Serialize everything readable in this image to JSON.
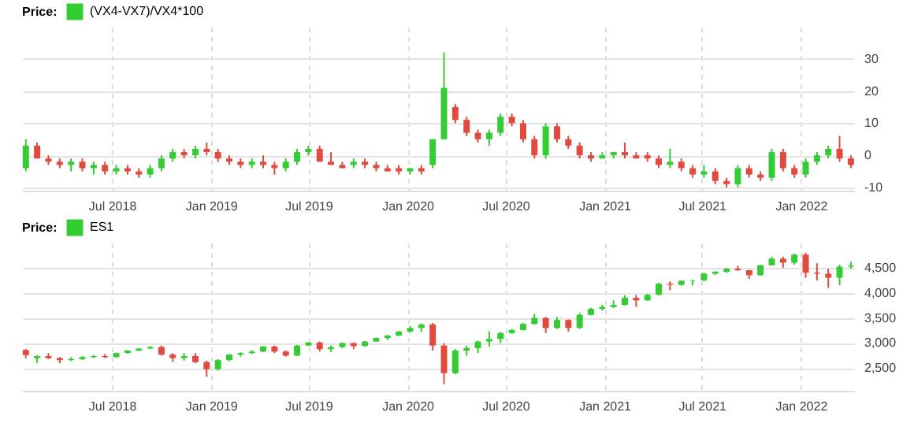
{
  "chart_data": [
    {
      "type": "candlestick",
      "legend_title": "Price:",
      "legend": "top left",
      "grid": true,
      "x": [
        "2018-01-22",
        "2018-02-12",
        "2018-03-05",
        "2018-03-26",
        "2018-04-16",
        "2018-05-07",
        "2018-05-28",
        "2018-06-18",
        "2018-07-09",
        "2018-07-30",
        "2018-08-20",
        "2018-09-10",
        "2018-10-01",
        "2018-10-22",
        "2018-11-12",
        "2018-12-03",
        "2018-12-24",
        "2019-01-14",
        "2019-02-04",
        "2019-02-25",
        "2019-03-18",
        "2019-04-08",
        "2019-04-29",
        "2019-05-20",
        "2019-06-10",
        "2019-07-01",
        "2019-07-22",
        "2019-08-12",
        "2019-09-02",
        "2019-09-23",
        "2019-10-14",
        "2019-11-04",
        "2019-11-25",
        "2019-12-16",
        "2020-01-06",
        "2020-01-27",
        "2020-02-17",
        "2020-03-09",
        "2020-03-30",
        "2020-04-20",
        "2020-05-11",
        "2020-06-01",
        "2020-06-22",
        "2020-07-13",
        "2020-08-03",
        "2020-08-24",
        "2020-09-14",
        "2020-10-05",
        "2020-10-26",
        "2020-11-16",
        "2020-12-07",
        "2020-12-28",
        "2021-01-18",
        "2021-02-08",
        "2021-03-01",
        "2021-03-22",
        "2021-04-12",
        "2021-05-03",
        "2021-05-24",
        "2021-06-14",
        "2021-07-05",
        "2021-07-26",
        "2021-08-16",
        "2021-09-06",
        "2021-09-27",
        "2021-10-18",
        "2021-11-08",
        "2021-11-29",
        "2021-12-20",
        "2022-01-10",
        "2022-01-31",
        "2022-02-21",
        "2022-03-14",
        "2022-04-04"
      ],
      "series": [
        {
          "name": "(VX4-VX7)/VX4*100",
          "color": "#33cc33",
          "ohlc": [
            [
              -4,
              5,
              -5,
              3
            ],
            [
              3,
              4,
              -1,
              -1
            ],
            [
              -1,
              0,
              -3,
              -2
            ],
            [
              -2,
              -1,
              -4,
              -3
            ],
            [
              -3,
              -1,
              -5,
              -2
            ],
            [
              -2,
              -1,
              -5,
              -4
            ],
            [
              -4,
              -2,
              -6,
              -3
            ],
            [
              -3,
              -2,
              -6,
              -5
            ],
            [
              -5,
              -3,
              -6,
              -4
            ],
            [
              -4,
              -3,
              -6,
              -5
            ],
            [
              -5,
              -4,
              -7,
              -6
            ],
            [
              -6,
              -3,
              -7,
              -4
            ],
            [
              -4,
              0,
              -5,
              -1
            ],
            [
              -1,
              2,
              -2,
              1
            ],
            [
              1,
              2,
              -1,
              0
            ],
            [
              0,
              3,
              -1,
              2
            ],
            [
              2,
              4,
              0,
              1
            ],
            [
              1,
              2,
              -2,
              -1
            ],
            [
              -1,
              0,
              -3,
              -2
            ],
            [
              -2,
              -1,
              -4,
              -3
            ],
            [
              -3,
              -1,
              -4,
              -2
            ],
            [
              -2,
              0,
              -4,
              -3
            ],
            [
              -3,
              -2,
              -6,
              -4
            ],
            [
              -4,
              -1,
              -5,
              -2
            ],
            [
              -2,
              2,
              -3,
              1
            ],
            [
              1,
              3,
              0,
              2
            ],
            [
              2,
              3,
              -2,
              -2
            ],
            [
              -2,
              1,
              -3,
              -3
            ],
            [
              -3,
              -2,
              -4,
              -4
            ],
            [
              -3,
              -1,
              -4,
              -2
            ],
            [
              -2,
              -1,
              -4,
              -3
            ],
            [
              -3,
              -2,
              -5,
              -4
            ],
            [
              -4,
              -3,
              -5,
              -5
            ],
            [
              -4,
              -3,
              -6,
              -5
            ],
            [
              -5,
              -4,
              -6,
              -4
            ],
            [
              -4,
              -3,
              -6,
              -5
            ],
            [
              -3,
              5,
              -4,
              5
            ],
            [
              5,
              32,
              5,
              21
            ],
            [
              15,
              16,
              10,
              11
            ],
            [
              11,
              12,
              6,
              7
            ],
            [
              7,
              8,
              4,
              5
            ],
            [
              5,
              8,
              3,
              7
            ],
            [
              7,
              13,
              6,
              12
            ],
            [
              12,
              13,
              9,
              10
            ],
            [
              10,
              11,
              4,
              5
            ],
            [
              5,
              6,
              -1,
              0
            ],
            [
              0,
              10,
              -1,
              9
            ],
            [
              9,
              10,
              4,
              5
            ],
            [
              5,
              6,
              2,
              3
            ],
            [
              3,
              4,
              -1,
              0
            ],
            [
              0,
              1,
              -2,
              -1
            ],
            [
              -1,
              1,
              -1,
              0
            ],
            [
              0,
              1,
              -1,
              1
            ],
            [
              1,
              4,
              -1,
              0
            ],
            [
              0,
              1,
              -1,
              -1
            ],
            [
              0,
              1,
              -2,
              -1
            ],
            [
              -1,
              0,
              -4,
              -3
            ],
            [
              -3,
              2,
              -4,
              -2
            ],
            [
              -2,
              -1,
              -5,
              -4
            ],
            [
              -4,
              -3,
              -7,
              -6
            ],
            [
              -6,
              -3,
              -7,
              -5
            ],
            [
              -5,
              -4,
              -9,
              -8
            ],
            [
              -8,
              -7,
              -10,
              -9
            ],
            [
              -9,
              -3,
              -10,
              -4
            ],
            [
              -4,
              -3,
              -7,
              -6
            ],
            [
              -6,
              -5,
              -8,
              -7
            ],
            [
              -7,
              2,
              -8,
              1
            ],
            [
              1,
              2,
              -5,
              -4
            ],
            [
              -4,
              -3,
              -7,
              -6
            ],
            [
              -6,
              -1,
              -7,
              -2
            ],
            [
              -2,
              1,
              -3,
              0
            ],
            [
              0,
              3,
              -1,
              2
            ],
            [
              2,
              6,
              -2,
              -1
            ],
            [
              -1,
              0,
              -4,
              -3
            ]
          ],
          "colors": [
            "#33cc33",
            "#e04a3f",
            "#e04a3f",
            "#e04a3f",
            "#33cc33",
            "#e04a3f",
            "#33cc33",
            "#e04a3f",
            "#33cc33",
            "#e04a3f",
            "#e04a3f",
            "#33cc33",
            "#33cc33",
            "#33cc33",
            "#e04a3f",
            "#33cc33",
            "#e04a3f",
            "#e04a3f",
            "#e04a3f",
            "#e04a3f",
            "#33cc33",
            "#e04a3f",
            "#e04a3f",
            "#33cc33",
            "#33cc33",
            "#33cc33",
            "#e04a3f",
            "#e04a3f",
            "#e04a3f",
            "#33cc33",
            "#e04a3f",
            "#e04a3f",
            "#e04a3f",
            "#e04a3f",
            "#33cc33",
            "#e04a3f",
            "#33cc33",
            "#33cc33",
            "#e04a3f",
            "#e04a3f",
            "#e04a3f",
            "#33cc33",
            "#33cc33",
            "#e04a3f",
            "#e04a3f",
            "#e04a3f",
            "#33cc33",
            "#e04a3f",
            "#e04a3f",
            "#e04a3f",
            "#e04a3f",
            "#33cc33",
            "#33cc33",
            "#e04a3f",
            "#e04a3f",
            "#e04a3f",
            "#e04a3f",
            "#33cc33",
            "#e04a3f",
            "#e04a3f",
            "#33cc33",
            "#e04a3f",
            "#e04a3f",
            "#33cc33",
            "#e04a3f",
            "#e04a3f",
            "#33cc33",
            "#e04a3f",
            "#e04a3f",
            "#33cc33",
            "#33cc33",
            "#33cc33",
            "#e04a3f",
            "#e04a3f"
          ]
        }
      ],
      "xlim": [
        "2018-01-15",
        "2022-04-10"
      ],
      "xticks": [
        {
          "value": "2018-07-01",
          "label": "Jul 2018"
        },
        {
          "value": "2019-01-01",
          "label": "Jan 2019"
        },
        {
          "value": "2019-07-01",
          "label": "Jul 2019"
        },
        {
          "value": "2020-01-01",
          "label": "Jan 2020"
        },
        {
          "value": "2020-07-01",
          "label": "Jul 2020"
        },
        {
          "value": "2021-01-01",
          "label": "Jan 2021"
        },
        {
          "value": "2021-07-01",
          "label": "Jul 2021"
        },
        {
          "value": "2022-01-01",
          "label": "Jan 2022"
        }
      ],
      "ylim": [
        -11,
        40
      ],
      "yticks": [
        -10,
        0,
        10,
        20,
        30
      ]
    },
    {
      "type": "candlestick",
      "legend_title": "Price:",
      "legend": "top left",
      "grid": true,
      "x": [
        "2018-01-22",
        "2018-02-12",
        "2018-03-05",
        "2018-03-26",
        "2018-04-16",
        "2018-05-07",
        "2018-05-28",
        "2018-06-18",
        "2018-07-09",
        "2018-07-30",
        "2018-08-20",
        "2018-09-10",
        "2018-10-01",
        "2018-10-22",
        "2018-11-12",
        "2018-12-03",
        "2018-12-24",
        "2019-01-14",
        "2019-02-04",
        "2019-02-25",
        "2019-03-18",
        "2019-04-08",
        "2019-04-29",
        "2019-05-20",
        "2019-06-10",
        "2019-07-01",
        "2019-07-22",
        "2019-08-12",
        "2019-09-02",
        "2019-09-23",
        "2019-10-14",
        "2019-11-04",
        "2019-11-25",
        "2019-12-16",
        "2020-01-06",
        "2020-01-27",
        "2020-02-17",
        "2020-03-09",
        "2020-03-30",
        "2020-04-20",
        "2020-05-11",
        "2020-06-01",
        "2020-06-22",
        "2020-07-13",
        "2020-08-03",
        "2020-08-24",
        "2020-09-14",
        "2020-10-05",
        "2020-10-26",
        "2020-11-16",
        "2020-12-07",
        "2020-12-28",
        "2021-01-18",
        "2021-02-08",
        "2021-03-01",
        "2021-03-22",
        "2021-04-12",
        "2021-05-03",
        "2021-05-24",
        "2021-06-14",
        "2021-07-05",
        "2021-07-26",
        "2021-08-16",
        "2021-09-06",
        "2021-09-27",
        "2021-10-18",
        "2021-11-08",
        "2021-11-29",
        "2021-12-20",
        "2022-01-10",
        "2022-01-31",
        "2022-02-21",
        "2022-03-14",
        "2022-04-04"
      ],
      "series": [
        {
          "name": "ES1",
          "color": "#33cc33",
          "ohlc": [
            [
              2860,
              2880,
              2700,
              2760
            ],
            [
              2700,
              2760,
              2600,
              2740
            ],
            [
              2740,
              2800,
              2680,
              2700
            ],
            [
              2700,
              2720,
              2600,
              2660
            ],
            [
              2660,
              2720,
              2640,
              2680
            ],
            [
              2680,
              2740,
              2660,
              2720
            ],
            [
              2720,
              2760,
              2700,
              2740
            ],
            [
              2740,
              2780,
              2700,
              2720
            ],
            [
              2720,
              2810,
              2710,
              2800
            ],
            [
              2800,
              2860,
              2790,
              2850
            ],
            [
              2850,
              2900,
              2840,
              2890
            ],
            [
              2890,
              2940,
              2880,
              2920
            ],
            [
              2920,
              2950,
              2750,
              2770
            ],
            [
              2770,
              2800,
              2630,
              2700
            ],
            [
              2700,
              2800,
              2650,
              2740
            ],
            [
              2740,
              2800,
              2600,
              2620
            ],
            [
              2620,
              2650,
              2330,
              2480
            ],
            [
              2480,
              2680,
              2450,
              2660
            ],
            [
              2660,
              2780,
              2640,
              2770
            ],
            [
              2770,
              2820,
              2730,
              2800
            ],
            [
              2800,
              2860,
              2780,
              2830
            ],
            [
              2830,
              2940,
              2820,
              2930
            ],
            [
              2930,
              2950,
              2800,
              2830
            ],
            [
              2830,
              2850,
              2730,
              2750
            ],
            [
              2750,
              2960,
              2740,
              2950
            ],
            [
              2950,
              3020,
              2940,
              3010
            ],
            [
              3010,
              3030,
              2830,
              2880
            ],
            [
              2880,
              2950,
              2820,
              2920
            ],
            [
              2920,
              3010,
              2900,
              3000
            ],
            [
              3000,
              3010,
              2880,
              2940
            ],
            [
              2940,
              3040,
              2930,
              3030
            ],
            [
              3030,
              3110,
              3020,
              3100
            ],
            [
              3100,
              3160,
              3060,
              3150
            ],
            [
              3150,
              3240,
              3140,
              3230
            ],
            [
              3230,
              3340,
              3210,
              3300
            ],
            [
              3300,
              3390,
              3220,
              3370
            ],
            [
              3370,
              3400,
              2850,
              2950
            ],
            [
              2950,
              3000,
              2180,
              2400
            ],
            [
              2400,
              2880,
              2380,
              2850
            ],
            [
              2850,
              2950,
              2750,
              2900
            ],
            [
              2900,
              3050,
              2800,
              3030
            ],
            [
              3030,
              3230,
              2930,
              3080
            ],
            [
              3080,
              3220,
              3000,
              3200
            ],
            [
              3200,
              3280,
              3180,
              3260
            ],
            [
              3260,
              3400,
              3250,
              3380
            ],
            [
              3380,
              3580,
              3370,
              3500
            ],
            [
              3500,
              3520,
              3200,
              3300
            ],
            [
              3300,
              3520,
              3280,
              3460
            ],
            [
              3460,
              3470,
              3230,
              3300
            ],
            [
              3300,
              3600,
              3280,
              3560
            ],
            [
              3560,
              3700,
              3550,
              3680
            ],
            [
              3680,
              3760,
              3650,
              3720
            ],
            [
              3720,
              3850,
              3700,
              3760
            ],
            [
              3760,
              3950,
              3750,
              3900
            ],
            [
              3900,
              3960,
              3720,
              3850
            ],
            [
              3850,
              3980,
              3840,
              3960
            ],
            [
              3960,
              4200,
              3950,
              4180
            ],
            [
              4180,
              4230,
              4050,
              4160
            ],
            [
              4160,
              4250,
              4140,
              4240
            ],
            [
              4240,
              4260,
              4150,
              4250
            ],
            [
              4250,
              4400,
              4230,
              4380
            ],
            [
              4380,
              4430,
              4360,
              4420
            ],
            [
              4420,
              4500,
              4400,
              4480
            ],
            [
              4480,
              4540,
              4440,
              4450
            ],
            [
              4450,
              4460,
              4280,
              4350
            ],
            [
              4350,
              4560,
              4340,
              4550
            ],
            [
              4550,
              4720,
              4540,
              4680
            ],
            [
              4680,
              4720,
              4500,
              4600
            ],
            [
              4600,
              4780,
              4560,
              4760
            ],
            [
              4760,
              4800,
              4300,
              4400
            ],
            [
              4400,
              4590,
              4250,
              4380
            ],
            [
              4380,
              4480,
              4100,
              4300
            ],
            [
              4300,
              4560,
              4150,
              4520
            ],
            [
              4520,
              4620,
              4480,
              4540
            ]
          ],
          "colors": [
            "#e04a3f",
            "#33cc33",
            "#e04a3f",
            "#e04a3f",
            "#33cc33",
            "#33cc33",
            "#33cc33",
            "#e04a3f",
            "#33cc33",
            "#33cc33",
            "#33cc33",
            "#33cc33",
            "#e04a3f",
            "#e04a3f",
            "#33cc33",
            "#e04a3f",
            "#e04a3f",
            "#33cc33",
            "#33cc33",
            "#33cc33",
            "#33cc33",
            "#33cc33",
            "#e04a3f",
            "#e04a3f",
            "#33cc33",
            "#33cc33",
            "#e04a3f",
            "#33cc33",
            "#33cc33",
            "#e04a3f",
            "#33cc33",
            "#33cc33",
            "#33cc33",
            "#33cc33",
            "#33cc33",
            "#33cc33",
            "#e04a3f",
            "#e04a3f",
            "#33cc33",
            "#33cc33",
            "#33cc33",
            "#33cc33",
            "#33cc33",
            "#33cc33",
            "#33cc33",
            "#33cc33",
            "#e04a3f",
            "#33cc33",
            "#e04a3f",
            "#33cc33",
            "#33cc33",
            "#33cc33",
            "#33cc33",
            "#33cc33",
            "#e04a3f",
            "#33cc33",
            "#33cc33",
            "#e04a3f",
            "#33cc33",
            "#33cc33",
            "#33cc33",
            "#33cc33",
            "#33cc33",
            "#e04a3f",
            "#e04a3f",
            "#33cc33",
            "#33cc33",
            "#e04a3f",
            "#33cc33",
            "#e04a3f",
            "#e04a3f",
            "#e04a3f",
            "#33cc33",
            "#33cc33"
          ]
        }
      ],
      "xlim": [
        "2018-01-15",
        "2022-04-10"
      ],
      "xticks": [
        {
          "value": "2018-07-01",
          "label": "Jul 2018"
        },
        {
          "value": "2019-01-01",
          "label": "Jan 2019"
        },
        {
          "value": "2019-07-01",
          "label": "Jul 2019"
        },
        {
          "value": "2020-01-01",
          "label": "Jan 2020"
        },
        {
          "value": "2020-07-01",
          "label": "Jul 2020"
        },
        {
          "value": "2021-01-01",
          "label": "Jan 2021"
        },
        {
          "value": "2021-07-01",
          "label": "Jul 2021"
        },
        {
          "value": "2022-01-01",
          "label": "Jan 2022"
        }
      ],
      "ylim": [
        2050,
        5000
      ],
      "yticks": [
        {
          "value": 2500,
          "label": "2,500"
        },
        {
          "value": 3000,
          "label": "3,000"
        },
        {
          "value": 3500,
          "label": "3,500"
        },
        {
          "value": 4000,
          "label": "4,000"
        },
        {
          "value": 4500,
          "label": "4,500"
        }
      ]
    }
  ]
}
